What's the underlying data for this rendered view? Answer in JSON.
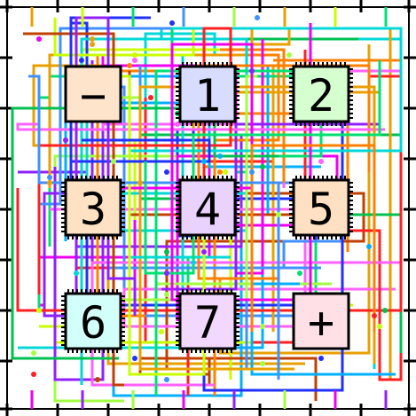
{
  "puzzle": {
    "tiles": [
      {
        "id": "minus",
        "symbol": "−",
        "color": "#ffe4cc",
        "pins": false
      },
      {
        "id": "one",
        "symbol": "1",
        "color": "#d8dcff",
        "pins": true
      },
      {
        "id": "two",
        "symbol": "2",
        "color": "#d6ffd0",
        "pins": true
      },
      {
        "id": "three",
        "symbol": "3",
        "color": "#ffe2c4",
        "pins": true
      },
      {
        "id": "four",
        "symbol": "4",
        "color": "#ead2ff",
        "pins": true
      },
      {
        "id": "five",
        "symbol": "5",
        "color": "#ffe0c2",
        "pins": true
      },
      {
        "id": "six",
        "symbol": "6",
        "color": "#d2fffa",
        "pins": true
      },
      {
        "id": "seven",
        "symbol": "7",
        "color": "#f2d8ff",
        "pins": true
      },
      {
        "id": "plus",
        "symbol": "+",
        "color": "#ffe0e6",
        "pins": false
      }
    ],
    "wire_colors": [
      "#e8a000",
      "#00d8d8",
      "#f000f0",
      "#c8ff00",
      "#ff2020",
      "#2030ff",
      "#00e070",
      "#9020ff",
      "#ff8000",
      "#4090ff",
      "#00c050",
      "#ff60ff",
      "#a0ff40",
      "#00b0ff",
      "#c04000"
    ]
  }
}
